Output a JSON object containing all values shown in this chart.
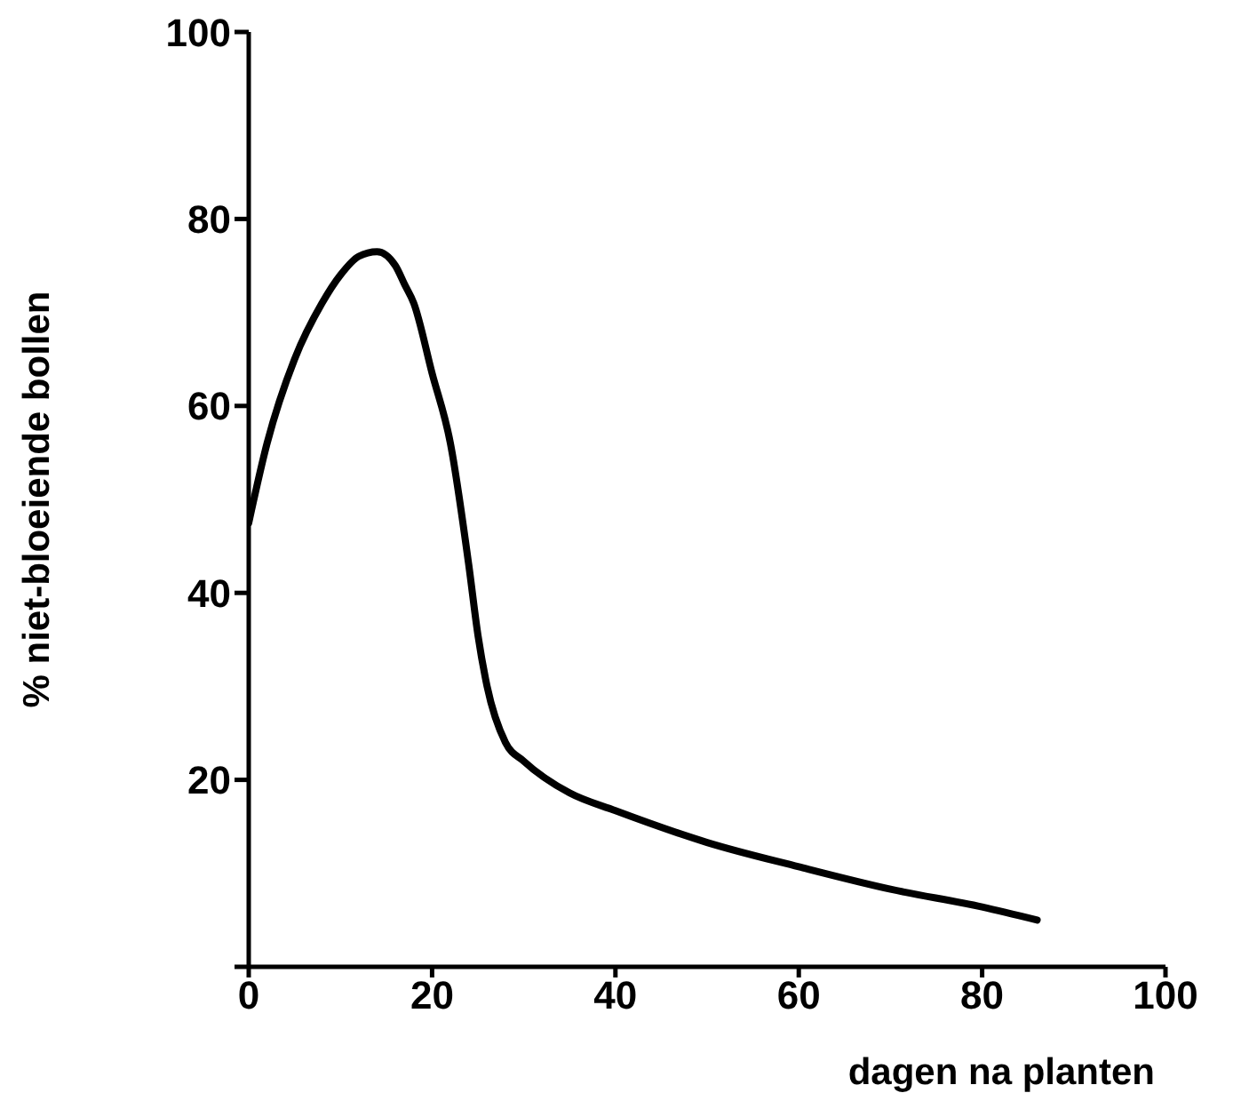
{
  "chart_data": {
    "type": "line",
    "xlabel": "dagen na planten",
    "ylabel": "% niet-bloeiende bollen",
    "xlim": [
      0,
      100
    ],
    "xticks": [
      0,
      20,
      40,
      60,
      80,
      100
    ],
    "ylim": [
      0,
      100
    ],
    "yticks": [
      {
        "value": 0,
        "label": null
      },
      20,
      40,
      60,
      80,
      100
    ],
    "grid": false,
    "legend": false,
    "marker": "none",
    "line_style": "solid",
    "series": [
      {
        "color": "#000000",
        "x": [
          0,
          2,
          5,
          8,
          10,
          12,
          14,
          16,
          17,
          18,
          20,
          22,
          24,
          25,
          26,
          28,
          30,
          35,
          40,
          50,
          60,
          70,
          80,
          86
        ],
        "values": [
          47.5,
          56,
          65,
          71,
          74,
          76,
          76.5,
          75,
          73,
          71,
          63.5,
          56,
          43,
          35.5,
          30,
          24,
          22,
          18.6,
          16.7,
          13.3,
          10.7,
          8.3,
          6.4,
          5
        ]
      }
    ]
  }
}
